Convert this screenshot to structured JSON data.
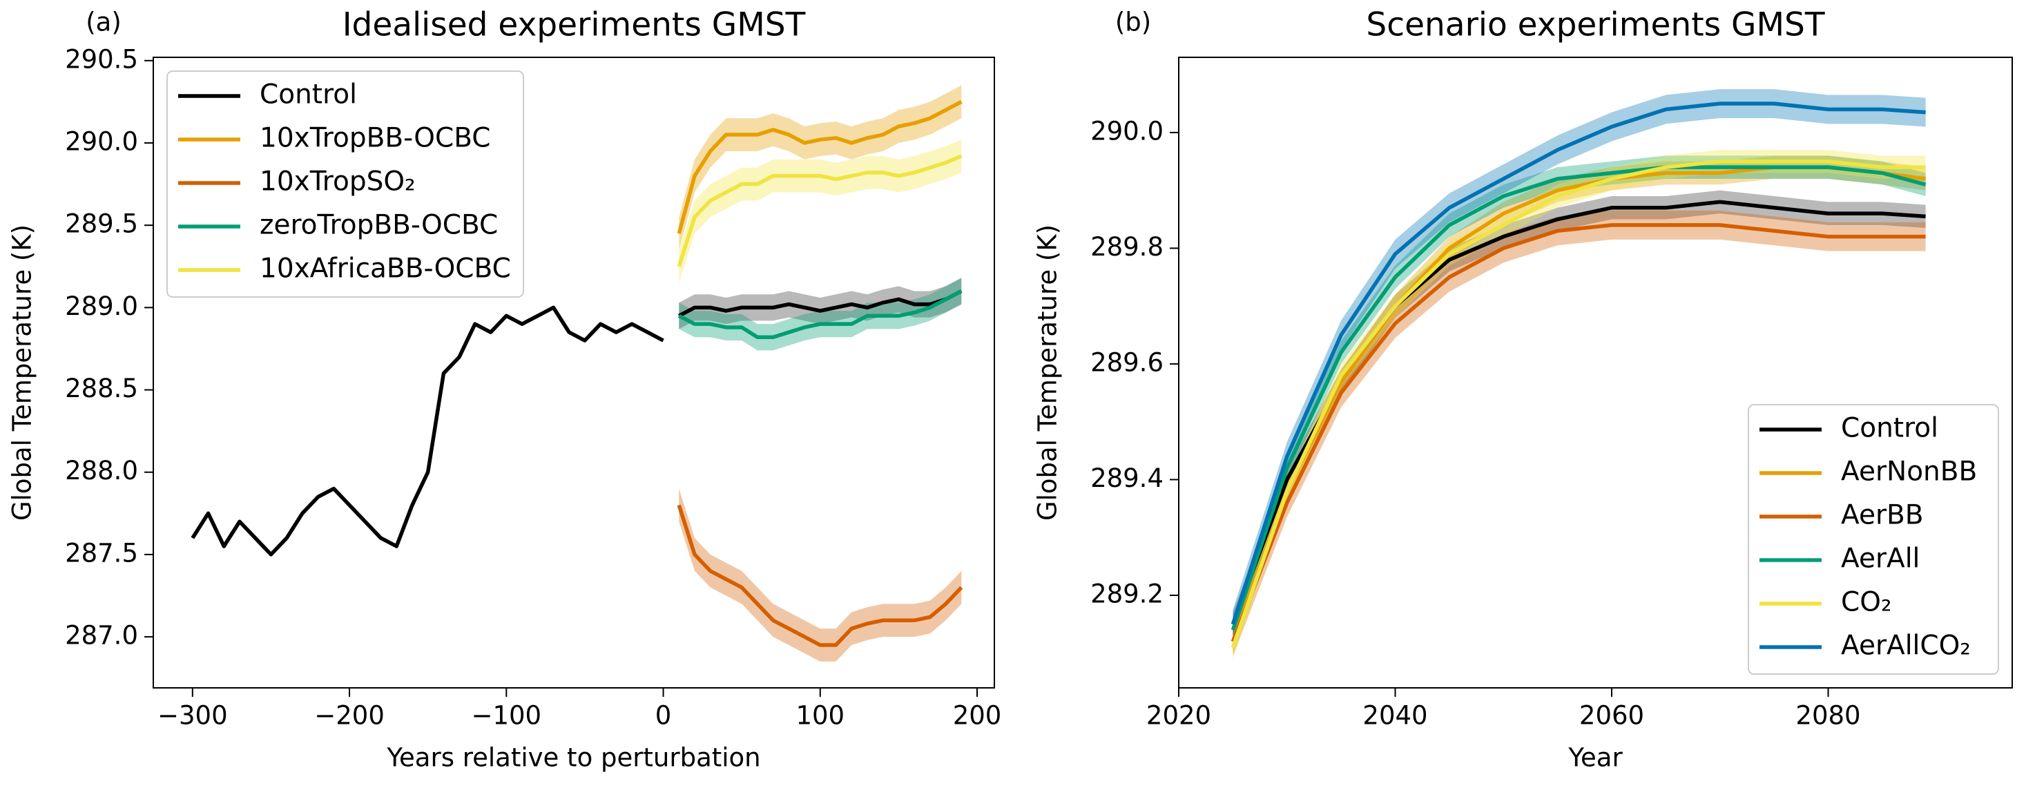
{
  "chart_data": [
    {
      "type": "line",
      "panel_label": "(a)",
      "title": "Idealised experiments GMST",
      "xlabel": "Years relative to perturbation",
      "ylabel": "Global Temperature (K)",
      "xlim": [
        -325,
        211
      ],
      "ylim": [
        286.69,
        290.52
      ],
      "xticks": [
        {
          "value": -300,
          "label": "−300"
        },
        {
          "value": -200,
          "label": "−200"
        },
        {
          "value": -100,
          "label": "−100"
        },
        0,
        100,
        200
      ],
      "yticks": [
        {
          "value": 287,
          "label": "287.0"
        },
        287.5,
        {
          "value": 288,
          "label": "288.0"
        },
        288.5,
        {
          "value": 289,
          "label": "289.0"
        },
        289.5,
        {
          "value": 290,
          "label": "290.0"
        },
        290.5
      ],
      "legend": "upper left",
      "series": [
        {
          "name": "Control",
          "color": "#000000",
          "x": [
            -300,
            -290,
            -280,
            -270,
            -260,
            -250,
            -240,
            -230,
            -220,
            -210,
            -200,
            -190,
            -180,
            -170,
            -160,
            -150,
            -140,
            -130,
            -120,
            -110,
            -100,
            -90,
            -80,
            -70,
            -60,
            -50,
            -40,
            -30,
            -20,
            -10,
            0,
            5,
            10,
            20,
            30,
            40,
            50,
            60,
            70,
            80,
            90,
            100,
            110,
            120,
            130,
            140,
            150,
            160,
            170,
            180,
            190
          ],
          "values": [
            287.6,
            287.75,
            287.55,
            287.7,
            287.6,
            287.5,
            287.6,
            287.75,
            287.85,
            287.9,
            287.8,
            287.7,
            287.6,
            287.55,
            287.8,
            288.0,
            288.6,
            288.7,
            288.9,
            288.85,
            288.95,
            288.9,
            288.95,
            289.0,
            288.85,
            288.8,
            288.9,
            288.85,
            288.9,
            288.85,
            288.8,
            null,
            288.95,
            289.0,
            289.0,
            288.98,
            289.0,
            289.0,
            289.0,
            289.02,
            289.0,
            288.98,
            289.0,
            289.02,
            289.0,
            289.03,
            289.05,
            289.02,
            289.02,
            289.05,
            289.1
          ],
          "spread": [
            null,
            null,
            null,
            null,
            null,
            null,
            null,
            null,
            null,
            null,
            null,
            null,
            null,
            null,
            null,
            null,
            null,
            null,
            null,
            null,
            null,
            null,
            null,
            null,
            null,
            null,
            null,
            null,
            null,
            null,
            null,
            null,
            0.08,
            0.08,
            0.08,
            0.08,
            0.08,
            0.08,
            0.08,
            0.08,
            0.08,
            0.08,
            0.08,
            0.08,
            0.08,
            0.08,
            0.08,
            0.08,
            0.08,
            0.08,
            0.08
          ]
        },
        {
          "name": "10xTropBB-OCBC",
          "color": "#e69f00",
          "x": [
            10,
            20,
            30,
            40,
            50,
            60,
            70,
            80,
            90,
            100,
            110,
            120,
            130,
            140,
            150,
            160,
            170,
            180,
            190
          ],
          "values": [
            289.45,
            289.8,
            289.95,
            290.05,
            290.05,
            290.05,
            290.08,
            290.05,
            290.0,
            290.02,
            290.03,
            290.0,
            290.03,
            290.05,
            290.1,
            290.12,
            290.15,
            290.2,
            290.25
          ],
          "spread": 0.1
        },
        {
          "name": "10xTropSO₂",
          "color": "#d55e00",
          "x": [
            10,
            20,
            30,
            40,
            50,
            60,
            70,
            80,
            90,
            100,
            110,
            120,
            130,
            140,
            150,
            160,
            170,
            180,
            190
          ],
          "values": [
            287.8,
            287.5,
            287.4,
            287.35,
            287.3,
            287.2,
            287.1,
            287.05,
            287.0,
            286.95,
            286.95,
            287.05,
            287.08,
            287.1,
            287.1,
            287.1,
            287.12,
            287.2,
            287.3
          ],
          "spread": 0.1
        },
        {
          "name": "zeroTropBB-OCBC",
          "color": "#009e73",
          "x": [
            10,
            20,
            30,
            40,
            50,
            60,
            70,
            80,
            90,
            100,
            110,
            120,
            130,
            140,
            150,
            160,
            170,
            180,
            190
          ],
          "values": [
            288.95,
            288.9,
            288.9,
            288.88,
            288.88,
            288.82,
            288.82,
            288.85,
            288.88,
            288.9,
            288.9,
            288.9,
            288.95,
            288.95,
            288.95,
            288.97,
            289.0,
            289.05,
            289.1
          ],
          "spread": 0.08
        },
        {
          "name": "10xAfricaBB-OCBC",
          "color": "#f0e442",
          "x": [
            10,
            20,
            30,
            40,
            50,
            60,
            70,
            80,
            90,
            100,
            110,
            120,
            130,
            140,
            150,
            160,
            170,
            180,
            190
          ],
          "values": [
            289.25,
            289.55,
            289.65,
            289.7,
            289.75,
            289.75,
            289.8,
            289.8,
            289.8,
            289.8,
            289.78,
            289.8,
            289.82,
            289.82,
            289.8,
            289.82,
            289.85,
            289.88,
            289.92
          ],
          "spread": 0.1
        }
      ]
    },
    {
      "type": "line",
      "panel_label": "(b)",
      "title": "Scenario experiments GMST",
      "xlabel": "Year",
      "ylabel": "Global Temperature (K)",
      "xlim": [
        2020,
        2097
      ],
      "ylim": [
        289.04,
        290.13
      ],
      "xticks": [
        2020,
        2040,
        2060,
        2080
      ],
      "yticks": [
        289.2,
        289.4,
        289.6,
        289.8,
        {
          "value": 290,
          "label": "290.0"
        }
      ],
      "legend": "lower right",
      "x": [
        2025,
        2030,
        2035,
        2040,
        2045,
        2050,
        2055,
        2060,
        2065,
        2070,
        2075,
        2080,
        2085,
        2089
      ],
      "series": [
        {
          "name": "Control",
          "color": "#000000",
          "spread": 0.02,
          "values": [
            289.15,
            289.4,
            289.57,
            289.7,
            289.78,
            289.82,
            289.85,
            289.87,
            289.87,
            289.88,
            289.87,
            289.86,
            289.86,
            289.855
          ]
        },
        {
          "name": "AerNonBB",
          "color": "#e69f00",
          "spread": 0.02,
          "values": [
            289.12,
            289.38,
            289.57,
            289.7,
            289.8,
            289.86,
            289.9,
            289.92,
            289.93,
            289.93,
            289.94,
            289.94,
            289.93,
            289.92
          ]
        },
        {
          "name": "AerBB",
          "color": "#d55e00",
          "spread": 0.025,
          "values": [
            289.12,
            289.36,
            289.55,
            289.67,
            289.75,
            289.8,
            289.83,
            289.84,
            289.84,
            289.84,
            289.83,
            289.82,
            289.82,
            289.82
          ]
        },
        {
          "name": "AerAll",
          "color": "#009e73",
          "spread": 0.02,
          "values": [
            289.14,
            289.42,
            289.62,
            289.75,
            289.84,
            289.89,
            289.92,
            289.93,
            289.94,
            289.94,
            289.94,
            289.94,
            289.93,
            289.91
          ]
        },
        {
          "name": "CO₂",
          "color": "#f0e442",
          "spread": 0.02,
          "values": [
            289.11,
            289.38,
            289.58,
            289.7,
            289.79,
            289.84,
            289.89,
            289.92,
            289.94,
            289.95,
            289.95,
            289.95,
            289.94,
            289.94
          ]
        },
        {
          "name": "AerAllCO₂",
          "color": "#0072b2",
          "spread": 0.025,
          "values": [
            289.15,
            289.44,
            289.65,
            289.79,
            289.87,
            289.92,
            289.97,
            290.01,
            290.04,
            290.05,
            290.05,
            290.04,
            290.04,
            290.035
          ]
        }
      ]
    }
  ]
}
